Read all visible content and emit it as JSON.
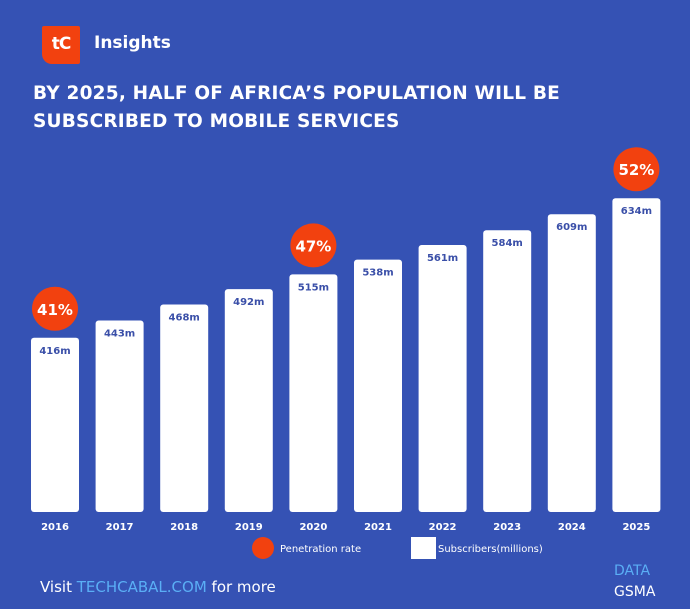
{
  "header": {
    "logo_text": "tC",
    "brand": "Insights",
    "title": "BY 2025, HALF OF AFRICA’S POPULATION WILL BE SUBSCRIBED TO MOBILE SERVICES"
  },
  "chart_data": {
    "type": "bar",
    "title": "BY 2025, HALF OF AFRICA’S POPULATION WILL BE SUBSCRIBED TO MOBILE SERVICES",
    "categories": [
      "2016",
      "2017",
      "2018",
      "2019",
      "2020",
      "2021",
      "2022",
      "2023",
      "2024",
      "2025"
    ],
    "series": [
      {
        "name": "Subscribers(millions)",
        "values": [
          416,
          443,
          468,
          492,
          515,
          538,
          561,
          584,
          609,
          634
        ],
        "labels": [
          "416m",
          "443m",
          "468m",
          "492m",
          "515m",
          "538m",
          "561m",
          "584m",
          "609m",
          "634m"
        ],
        "color": "#ffffff"
      }
    ],
    "annotations": [
      {
        "category": "2016",
        "series": "Penetration rate",
        "label": "41%"
      },
      {
        "category": "2020",
        "series": "Penetration rate",
        "label": "47%"
      },
      {
        "category": "2025",
        "series": "Penetration rate",
        "label": "52%"
      }
    ],
    "legend": [
      {
        "label": "Penetration rate",
        "color": "#f2410f",
        "shape": "circle"
      },
      {
        "label": "Subscribers(millions)",
        "color": "#ffffff",
        "shape": "square"
      }
    ],
    "legend_position": "bottom",
    "grid": false
  },
  "colors": {
    "background": "#3552b4",
    "accent": "#f2410f",
    "bar": "#ffffff",
    "bar_label": "#3a4fa8",
    "link": "#5aaef5"
  },
  "footer": {
    "prefix": "Visit ",
    "link": "TECHCABAL.COM",
    "suffix": " for more",
    "source_label": "DATA",
    "source": "GSMA"
  }
}
